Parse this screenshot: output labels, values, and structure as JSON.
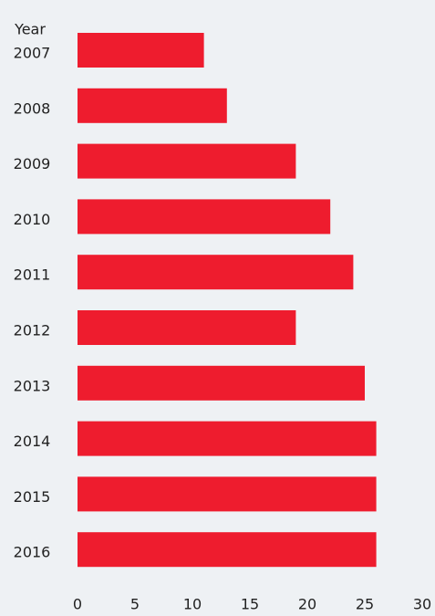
{
  "chart_data": {
    "type": "bar",
    "orientation": "horizontal",
    "y_label": "Year",
    "categories": [
      "2007",
      "2008",
      "2009",
      "2010",
      "2011",
      "2012",
      "2013",
      "2014",
      "2015",
      "2016"
    ],
    "values": [
      11,
      13,
      19,
      22,
      24,
      19,
      25,
      26,
      26,
      26
    ],
    "color": "#ee1c2e",
    "xlim": [
      0,
      30
    ],
    "xticks": [
      0,
      5,
      10,
      15,
      20,
      25,
      30
    ],
    "grid": false
  }
}
